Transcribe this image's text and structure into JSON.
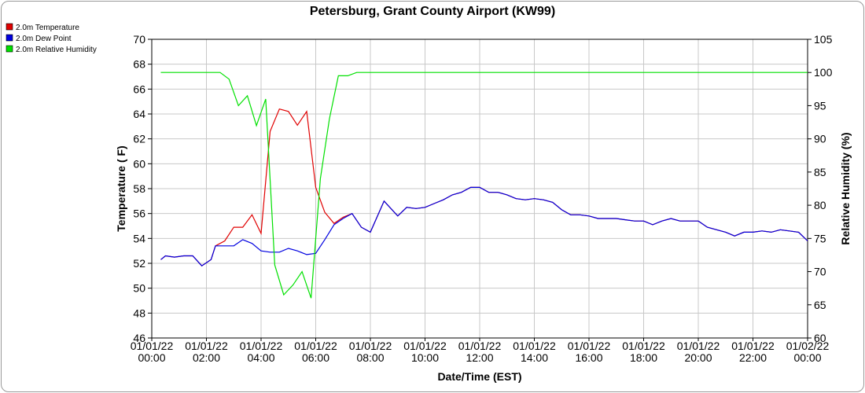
{
  "chart_data": {
    "type": "line",
    "title": "Petersburg, Grant County Airport (KW99)",
    "xlabel": "Date/Time (EST)",
    "ylabel": "Temperature ( F)",
    "y2label": "Relative Humidity (%)",
    "ylim": [
      46,
      70
    ],
    "y2lim": [
      60,
      105
    ],
    "grid": true,
    "legend_position": "top-left",
    "x_ticks": [
      {
        "x": 0,
        "date": "01/01/22",
        "time": "00:00"
      },
      {
        "x": 2,
        "date": "01/01/22",
        "time": "02:00"
      },
      {
        "x": 4,
        "date": "01/01/22",
        "time": "04:00"
      },
      {
        "x": 6,
        "date": "01/01/22",
        "time": "06:00"
      },
      {
        "x": 8,
        "date": "01/01/22",
        "time": "08:00"
      },
      {
        "x": 10,
        "date": "01/01/22",
        "time": "10:00"
      },
      {
        "x": 12,
        "date": "01/01/22",
        "time": "12:00"
      },
      {
        "x": 14,
        "date": "01/01/22",
        "time": "14:00"
      },
      {
        "x": 16,
        "date": "01/01/22",
        "time": "16:00"
      },
      {
        "x": 18,
        "date": "01/01/22",
        "time": "18:00"
      },
      {
        "x": 20,
        "date": "01/01/22",
        "time": "20:00"
      },
      {
        "x": 22,
        "date": "01/01/22",
        "time": "22:00"
      },
      {
        "x": 24,
        "date": "01/02/22",
        "time": "00:00"
      }
    ],
    "y_ticks": [
      46,
      48,
      50,
      52,
      54,
      56,
      58,
      60,
      62,
      64,
      66,
      68,
      70
    ],
    "y2_ticks": [
      60,
      65,
      70,
      75,
      80,
      85,
      90,
      95,
      100,
      105
    ],
    "series": [
      {
        "name": "2.0m Temperature",
        "color": "#e00000",
        "axis": "left",
        "x": [
          0.33,
          0.5,
          0.83,
          1.17,
          1.5,
          1.83,
          2.17,
          2.33,
          2.67,
          3.0,
          3.33,
          3.67,
          4.0,
          4.33,
          4.67,
          5.0,
          5.33,
          5.67,
          6.0,
          6.33,
          6.67,
          7.0,
          7.33,
          7.67,
          8.0,
          8.5,
          9.0,
          9.33,
          9.67,
          10.0,
          10.33,
          10.67,
          11.0,
          11.33,
          11.67,
          12.0,
          12.33,
          12.67,
          13.0,
          13.33,
          13.67,
          14.0,
          14.33,
          14.67,
          15.0,
          15.33,
          15.67,
          16.0,
          16.33,
          16.67,
          17.0,
          17.33,
          17.67,
          18.0,
          18.33,
          18.67,
          19.0,
          19.33,
          19.67,
          20.0,
          20.33,
          20.67,
          21.0,
          21.33,
          21.67,
          22.0,
          22.33,
          22.67,
          23.0,
          23.33,
          23.67,
          24.0
        ],
        "values": [
          52.3,
          52.6,
          52.5,
          52.6,
          52.6,
          51.8,
          52.3,
          53.4,
          53.8,
          54.9,
          54.9,
          55.9,
          54.4,
          62.6,
          64.4,
          64.2,
          63.1,
          64.2,
          58.1,
          56.1,
          55.2,
          55.7,
          56.0,
          54.9,
          54.5,
          57.0,
          55.8,
          56.5,
          56.4,
          56.5,
          56.8,
          57.1,
          57.5,
          57.7,
          58.1,
          58.1,
          57.7,
          57.7,
          57.5,
          57.2,
          57.1,
          57.2,
          57.1,
          56.9,
          56.3,
          55.9,
          55.9,
          55.8,
          55.6,
          55.6,
          55.6,
          55.5,
          55.4,
          55.4,
          55.1,
          55.4,
          55.6,
          55.4,
          55.4,
          55.4,
          54.9,
          54.7,
          54.5,
          54.2,
          54.5,
          54.5,
          54.6,
          54.5,
          54.7,
          54.6,
          54.5,
          53.8
        ]
      },
      {
        "name": "2.0m Dew Point",
        "color": "#0000e0",
        "axis": "left",
        "x": [
          0.33,
          0.5,
          0.83,
          1.17,
          1.5,
          1.83,
          2.17,
          2.33,
          2.67,
          3.0,
          3.33,
          3.67,
          4.0,
          4.33,
          4.67,
          5.0,
          5.33,
          5.67,
          6.0,
          6.33,
          6.67,
          7.0,
          7.33,
          7.67,
          8.0,
          8.5,
          9.0,
          9.33,
          9.67,
          10.0,
          10.33,
          10.67,
          11.0,
          11.33,
          11.67,
          12.0,
          12.33,
          12.67,
          13.0,
          13.33,
          13.67,
          14.0,
          14.33,
          14.67,
          15.0,
          15.33,
          15.67,
          16.0,
          16.33,
          16.67,
          17.0,
          17.33,
          17.67,
          18.0,
          18.33,
          18.67,
          19.0,
          19.33,
          19.67,
          20.0,
          20.33,
          20.67,
          21.0,
          21.33,
          21.67,
          22.0,
          22.33,
          22.67,
          23.0,
          23.33,
          23.67,
          24.0
        ],
        "values": [
          52.3,
          52.6,
          52.5,
          52.6,
          52.6,
          51.8,
          52.3,
          53.4,
          53.4,
          53.4,
          53.9,
          53.6,
          53.0,
          52.9,
          52.9,
          53.2,
          53.0,
          52.7,
          52.8,
          53.9,
          55.1,
          55.6,
          56.0,
          54.9,
          54.5,
          57.0,
          55.8,
          56.5,
          56.4,
          56.5,
          56.8,
          57.1,
          57.5,
          57.7,
          58.1,
          58.1,
          57.7,
          57.7,
          57.5,
          57.2,
          57.1,
          57.2,
          57.1,
          56.9,
          56.3,
          55.9,
          55.9,
          55.8,
          55.6,
          55.6,
          55.6,
          55.5,
          55.4,
          55.4,
          55.1,
          55.4,
          55.6,
          55.4,
          55.4,
          55.4,
          54.9,
          54.7,
          54.5,
          54.2,
          54.5,
          54.5,
          54.6,
          54.5,
          54.7,
          54.6,
          54.5,
          53.8
        ]
      },
      {
        "name": "2.0m Relative Humidity",
        "color": "#00e000",
        "axis": "right",
        "x": [
          0.33,
          2.17,
          2.5,
          2.83,
          3.17,
          3.5,
          3.83,
          4.17,
          4.5,
          4.83,
          5.17,
          5.5,
          5.83,
          6.17,
          6.5,
          6.83,
          7.17,
          7.5,
          8.0,
          24.0
        ],
        "values": [
          100,
          100,
          100,
          99,
          95,
          96.5,
          92,
          96,
          71,
          66.5,
          68,
          70,
          66,
          84,
          93,
          99.5,
          99.5,
          100,
          100,
          100
        ]
      }
    ]
  }
}
